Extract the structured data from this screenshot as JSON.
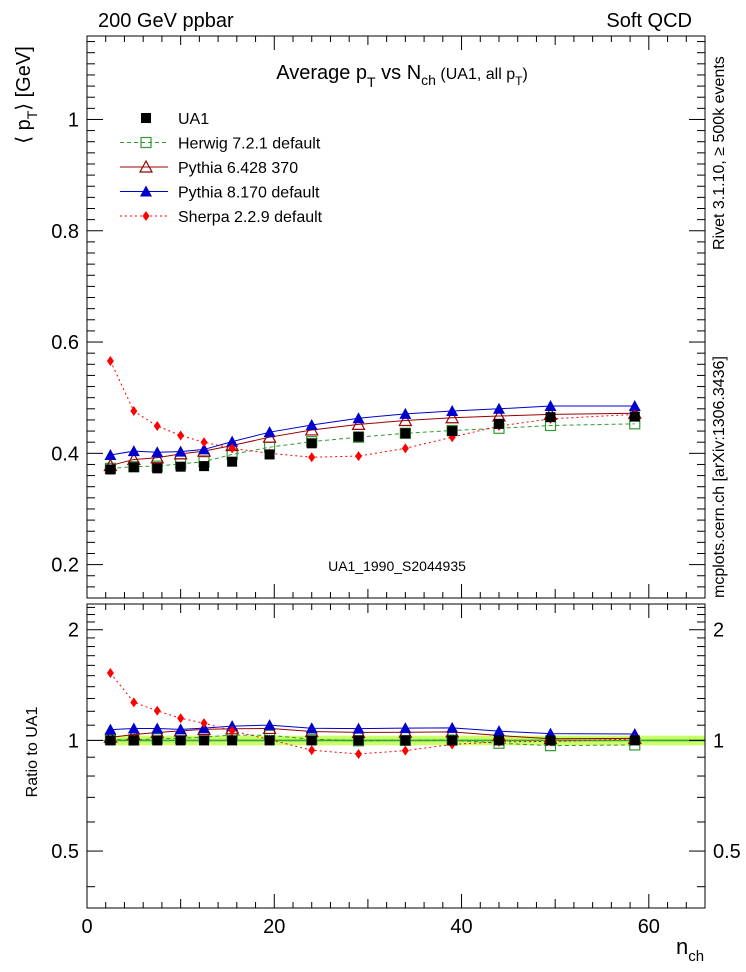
{
  "header": {
    "left": "200 GeV ppbar",
    "right": "Soft QCD"
  },
  "side_text": {
    "rivet": "Rivet 3.1.10, ≥ 500k events",
    "mcplots": "mcplots.cern.ch [arXiv:1306.3436]"
  },
  "watermark": "UA1_1990_S2044935",
  "ratio_ylabel": "Ratio to UA1",
  "chart_data": {
    "type": "scatter",
    "title_parts": {
      "main": "Average p",
      "main_sub": "T",
      "vs": " vs N",
      "vs_sub": "ch",
      "paren": " (UA1, all p",
      "paren_sub": "T",
      "close": ")"
    },
    "xlabel": {
      "main": "n",
      "sub": "ch"
    },
    "ylabel": {
      "open": "⟨ p",
      "sub": "T",
      "close": "⟩ [GeV]"
    },
    "xlim": [
      0,
      66
    ],
    "ylim": [
      0.14,
      1.15
    ],
    "ratio_ylim": [
      0.35,
      2.35
    ],
    "x_ticks": [
      "0",
      "20",
      "40",
      "60"
    ],
    "y_ticks": [
      "0.2",
      "0.4",
      "0.6",
      "0.8",
      "1"
    ],
    "ratio_ticks": [
      "0.5",
      "1",
      "2"
    ],
    "legend_placement": "top-left",
    "x": [
      2.5,
      5,
      7.5,
      10,
      12.5,
      15.5,
      19.5,
      24,
      29,
      34,
      39,
      44,
      49.5,
      58.5
    ],
    "series": [
      {
        "name": "UA1",
        "marker": "square-filled",
        "color": "#000000",
        "values": [
          0.371,
          0.375,
          0.373,
          0.376,
          0.377,
          0.385,
          0.398,
          0.418,
          0.43,
          0.436,
          0.44,
          0.453,
          0.465,
          0.466
        ]
      },
      {
        "name": "Herwig 7.2.1 default",
        "marker": "square-open",
        "color": "#339933",
        "dash": "4,3",
        "values": [
          0.373,
          0.376,
          0.377,
          0.381,
          0.385,
          0.398,
          0.411,
          0.421,
          0.429,
          0.436,
          0.441,
          0.445,
          0.45,
          0.453
        ]
      },
      {
        "name": "Pythia 6.428 370",
        "marker": "triangle-open",
        "color": "#990000",
        "dash": "",
        "values": [
          0.378,
          0.389,
          0.392,
          0.399,
          0.404,
          0.414,
          0.429,
          0.442,
          0.452,
          0.459,
          0.464,
          0.467,
          0.47,
          0.472
        ]
      },
      {
        "name": "Pythia 8.170 default",
        "marker": "triangle-filled",
        "color": "#0000cc",
        "dash": "",
        "values": [
          0.397,
          0.404,
          0.402,
          0.403,
          0.407,
          0.421,
          0.438,
          0.451,
          0.463,
          0.471,
          0.476,
          0.48,
          0.485,
          0.485
        ]
      },
      {
        "name": "Sherpa 2.2.9 default",
        "marker": "diamond-filled",
        "color": "#ff0000",
        "dash": "2,3",
        "values": [
          0.566,
          0.476,
          0.449,
          0.432,
          0.42,
          0.409,
          0.4,
          0.393,
          0.395,
          0.409,
          0.429,
          0.449,
          0.462,
          0.47
        ]
      }
    ],
    "ratio_band": {
      "color": "#ccff66",
      "inner_color": "#66cc66",
      "half_width": [
        0.03,
        0.03,
        0.03,
        0.03,
        0.03,
        0.03,
        0.03,
        0.03,
        0.03,
        0.03,
        0.03,
        0.03,
        0.03,
        0.03
      ]
    }
  }
}
